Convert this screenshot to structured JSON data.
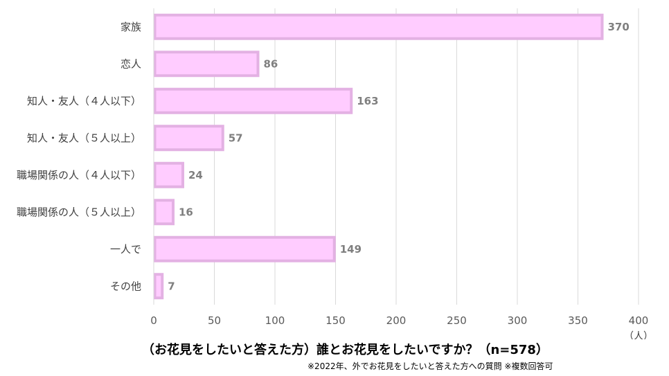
{
  "chart_data": {
    "type": "bar",
    "orientation": "horizontal",
    "categories": [
      "家族",
      "恋人",
      "知人・友人（４人以下）",
      "知人・友人（５人以上）",
      "職場関係の人（４人以下）",
      "職場関係の人（５人以上）",
      "一人で",
      "その他"
    ],
    "values": [
      370,
      86,
      163,
      57,
      24,
      16,
      149,
      7
    ],
    "xlim": [
      0,
      400
    ],
    "xticks": [
      "0",
      "50",
      "100",
      "150",
      "200",
      "250",
      "300",
      "350",
      "400"
    ],
    "unit": "（人）",
    "title": "（お花見をしたいと答えた方）誰とお花見をしたいですか？（n=578）",
    "footnote": "※2022年、外でお花見をしたいと答えた方への質問 ※複数回答可",
    "grid": "vertical",
    "colors": {
      "bar_fill": "#ffccff",
      "bar_stroke": "#e3b1e3",
      "grid": "#d9d9d9",
      "data_label": "#7f7f7f"
    }
  }
}
